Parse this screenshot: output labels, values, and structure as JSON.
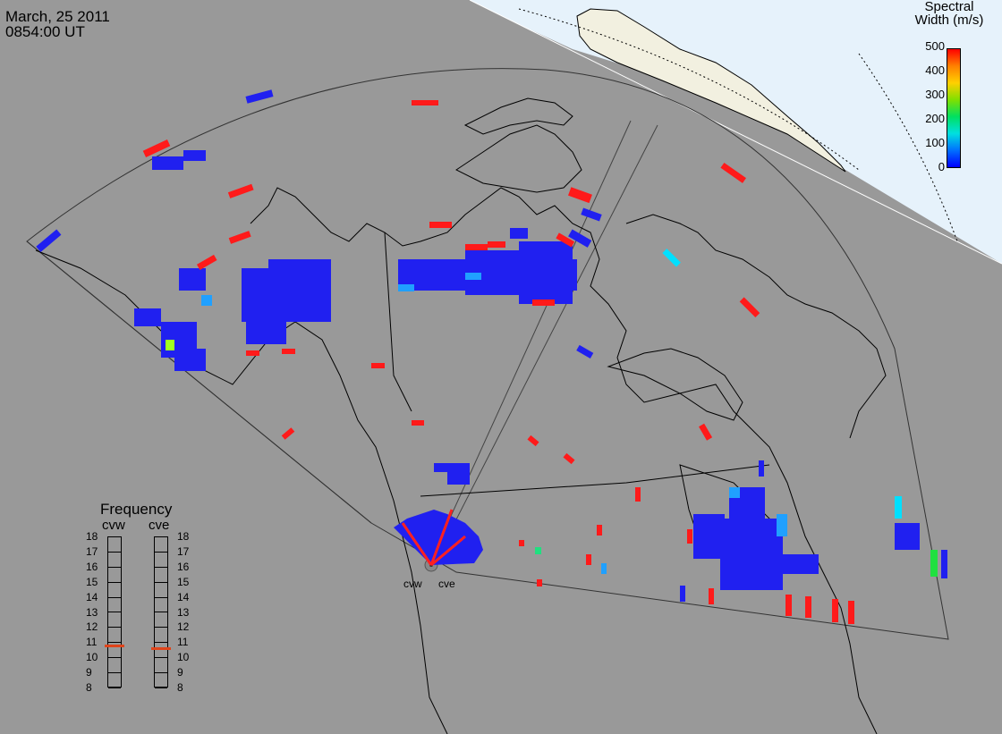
{
  "header": {
    "date": "March, 25 2011",
    "time": "0854:00 UT"
  },
  "colorbar": {
    "title_line1": "Spectral",
    "title_line2": "Width (m/s)",
    "ticks": [
      "500",
      "400",
      "300",
      "200",
      "100",
      "0"
    ],
    "gradient": [
      "#ff0000",
      "#ff8000",
      "#ffd000",
      "#80e000",
      "#00e060",
      "#00e0e0",
      "#0070ff",
      "#0000ff"
    ]
  },
  "frequency": {
    "title": "Frequency",
    "radars": [
      {
        "name": "cvw",
        "selected_mhz": 10.8
      },
      {
        "name": "cve",
        "selected_mhz": 10.6
      }
    ],
    "scale": [
      "18",
      "17",
      "16",
      "15",
      "14",
      "13",
      "12",
      "11",
      "10",
      "9",
      "8"
    ]
  },
  "sites": [
    {
      "label": "cvw"
    },
    {
      "label": "cve"
    }
  ],
  "colors": {
    "background": "#999999",
    "daylight": "#f2f0e0",
    "ocean_day": "#e6f2fb",
    "low_width": "#1a1aff",
    "high_width": "#ff1a1a",
    "mid_width": "#00e0ff",
    "frequency_marker": "#e0441a"
  }
}
